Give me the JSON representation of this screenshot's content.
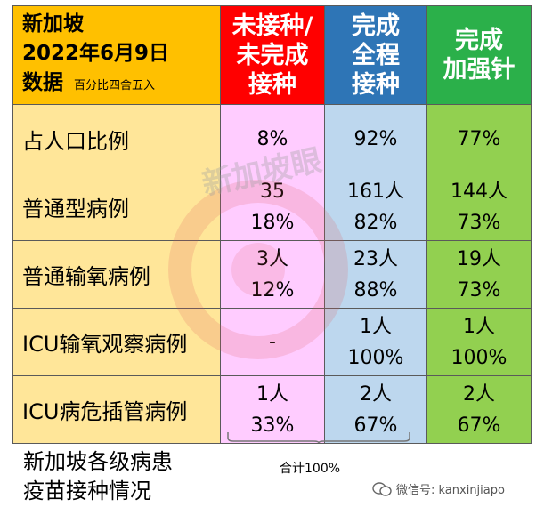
{
  "header": {
    "title_line1": "新加坡",
    "title_line2": "2022年6月9日",
    "title_line3": "数据",
    "note": "百分比四舍五入",
    "col1": [
      "未接种/",
      "未完成",
      "接种"
    ],
    "col2": [
      "完成",
      "全程",
      "接种"
    ],
    "col3": [
      "完成",
      "加强针"
    ]
  },
  "rows": [
    {
      "label": "占人口比例",
      "c1": [
        "8%"
      ],
      "c2": [
        "92%"
      ],
      "c3": [
        "77%"
      ]
    },
    {
      "label": "普通型病例",
      "c1": [
        "35",
        "18%"
      ],
      "c2": [
        "161人",
        "82%"
      ],
      "c3": [
        "144人",
        "73%"
      ]
    },
    {
      "label": "普通输氧病例",
      "c1": [
        "3人",
        "12%"
      ],
      "c2": [
        "23人",
        "88%"
      ],
      "c3": [
        "19人",
        "73%"
      ]
    },
    {
      "label": "ICU输氧观察病例",
      "c1": [
        "-"
      ],
      "c2": [
        "1人",
        "100%"
      ],
      "c3": [
        "1人",
        "100%"
      ]
    },
    {
      "label": "ICU病危插管病例",
      "c1": [
        "1人",
        "33%"
      ],
      "c2": [
        "2人",
        "67%"
      ],
      "c3": [
        "2人",
        "67%"
      ]
    }
  ],
  "caption": [
    "新加坡各级病患",
    "疫苗接种情况"
  ],
  "sum_label": "合计100%",
  "watermark": {
    "text": "新加坡眼",
    "wechat_label": "微信号: kanxinjiapo"
  },
  "colors": {
    "title_bg": "#ffc000",
    "unvaccinated": "#ff0000",
    "full": "#2e75b6",
    "booster": "#2bb04a",
    "label_bg": "#ffe699",
    "unvaccinated_bg": "#ffccff",
    "full_bg": "#bdd7ee",
    "booster_bg": "#92d050"
  }
}
